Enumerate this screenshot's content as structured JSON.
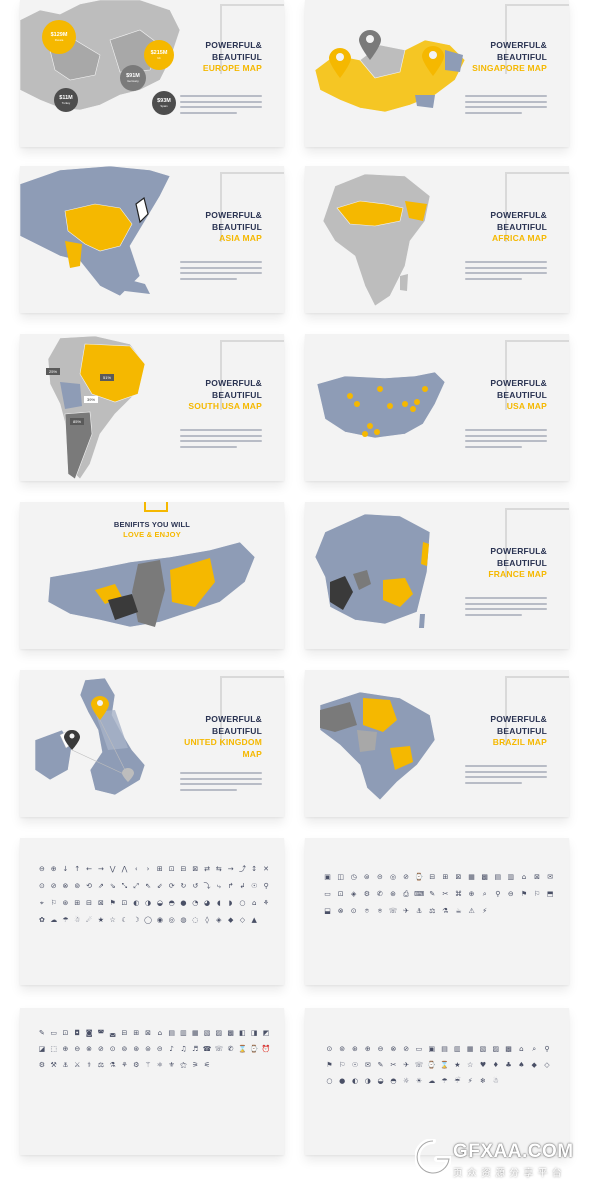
{
  "colors": {
    "accent": "#f5b800",
    "navy": "#2a3352",
    "map_blue": "#8e9cb6",
    "map_gray": "#bdbdbd",
    "dark_gray": "#595959"
  },
  "slides": [
    {
      "id": "europe",
      "tag": "",
      "line1": "POWERFUL&",
      "line2": "BEAUTIFUL",
      "accent": "EUROPE MAP",
      "bubbles": [
        {
          "value": "$129M",
          "name": "Russia"
        },
        {
          "value": "$215M",
          "name": "Uk"
        },
        {
          "value": "$91M",
          "name": "Germany"
        },
        {
          "value": "$11M",
          "name": "Turkey"
        },
        {
          "value": "$93M",
          "name": "Spain"
        }
      ]
    },
    {
      "id": "singapore",
      "tag": "",
      "line1": "POWERFUL&",
      "line2": "BEAUTIFUL",
      "accent": "SINGAPORE MAP"
    },
    {
      "id": "asia",
      "tag": "",
      "line1": "POWERFUL&",
      "line2": "BEAUTIFUL",
      "accent": "ASIA MAP"
    },
    {
      "id": "africa",
      "tag": "",
      "line1": "POWERFUL&",
      "line2": "BEAUTIFUL",
      "accent": "AFRICA MAP"
    },
    {
      "id": "south-usa",
      "tag": "",
      "line1": "POWERFUL&",
      "line2": "BEAUTIFUL",
      "accent": "SOUTH USA MAP",
      "tags": [
        "25%",
        "51%",
        "39%",
        "85%"
      ]
    },
    {
      "id": "usa",
      "tag": "",
      "line1": "POWERFUL&",
      "line2": "BEAUTIFUL",
      "accent": "USA MAP"
    },
    {
      "id": "russia",
      "benefit1": "BENIFITS YOU WILL",
      "benefit2": "LOVE & ENJOY"
    },
    {
      "id": "france",
      "tag": "",
      "line1": "POWERFUL&",
      "line2": "BEAUTIFUL",
      "accent": "FRANCE MAP"
    },
    {
      "id": "uk",
      "tag": "",
      "line1": "POWERFUL&",
      "line2": "BEAUTIFUL",
      "accent": "UNITED KINGDOM",
      "accent2": "MAP"
    },
    {
      "id": "brazil",
      "tag": "",
      "line1": "POWERFUL&",
      "line2": "BEAUTIFUL",
      "accent": "BRAZIL MAP"
    }
  ],
  "icon_sets": [
    [
      "⊖",
      "⊕",
      "↓",
      "↑",
      "←",
      "→",
      "⋁",
      "⋀",
      "‹",
      "›",
      "⊞",
      "⊡",
      "⊟",
      "⊠",
      "⇄",
      "⇆",
      "→",
      "⤴",
      "↕",
      "✕",
      "⊙",
      "⊘",
      "⊗",
      "⊚",
      "⟲",
      "⇗",
      "⇘",
      "⤡",
      "⤢",
      "⇖",
      "⇙",
      "⟳",
      "↻",
      "↺",
      "⤵",
      "⤷",
      "↱",
      "↲",
      "☉",
      "⚲",
      "⌖",
      "⚐",
      "⊛",
      "⊞",
      "⊟",
      "⊠",
      "⚑",
      "⊡",
      "◐",
      "◑",
      "◒",
      "◓",
      "●",
      "◔",
      "◕",
      "◖",
      "◗",
      "○",
      "⌂",
      "⚘",
      "✿",
      "☁",
      "☂",
      "☃",
      "☄",
      "★",
      "☆",
      "☾",
      "☽",
      "◯",
      "◉",
      "◎",
      "◍",
      "◌",
      "◊",
      "◈",
      "◆",
      "◇",
      "▲"
    ],
    [
      "▣",
      "◫",
      "◷",
      "⊜",
      "⊝",
      "◎",
      "⊘",
      "⌚",
      "⊟",
      "⊞",
      "⊠",
      "▦",
      "▩",
      "▤",
      "▥",
      "⌂",
      "⊠",
      "✉",
      "▭",
      "⊡",
      "◈",
      "⚙",
      "✆",
      "⊛",
      "⎙",
      "⌨",
      "✎",
      "✂",
      "⌘",
      "⊕",
      "⌕",
      "⚲",
      "⊖",
      "⚑",
      "⚐",
      "⬒",
      "⬓",
      "⊗",
      "⊙",
      "⌾",
      "⍟",
      "☏",
      "✈",
      "⚓",
      "⚖",
      "⚗",
      "☕",
      "⚠",
      "⚡"
    ],
    [
      "✎",
      "▭",
      "⊡",
      "◘",
      "◙",
      "◚",
      "◛",
      "⊟",
      "⊞",
      "⊠",
      "⌂",
      "▤",
      "▥",
      "▦",
      "▧",
      "▨",
      "▩",
      "◧",
      "◨",
      "◩",
      "◪",
      "⬚",
      "⊕",
      "⊖",
      "⊗",
      "⊘",
      "⊙",
      "⊚",
      "⊛",
      "⊜",
      "⊝",
      "♪",
      "♫",
      "♬",
      "☎",
      "☏",
      "✆",
      "⌛",
      "⌚",
      "⏰",
      "⚙",
      "⚒",
      "⚓",
      "⚔",
      "⚕",
      "⚖",
      "⚗",
      "⚘",
      "⚙",
      "⚚",
      "⚛",
      "⚜",
      "⚝",
      "⚞",
      "⚟"
    ],
    [
      "⊙",
      "⊚",
      "⊛",
      "⊕",
      "⊖",
      "⊗",
      "⊘",
      "▭",
      "▣",
      "▤",
      "▥",
      "▦",
      "▧",
      "▨",
      "▩",
      "⌂",
      "⌕",
      "⚲",
      "⚑",
      "⚐",
      "☉",
      "✉",
      "✎",
      "✂",
      "✈",
      "☏",
      "⌚",
      "⌛",
      "★",
      "☆",
      "♥",
      "♦",
      "♣",
      "♠",
      "◆",
      "◇",
      "○",
      "●",
      "◐",
      "◑",
      "◒",
      "◓",
      "☼",
      "☀",
      "☁",
      "☂",
      "☔",
      "⚡",
      "❄",
      "☃"
    ]
  ],
  "watermark": {
    "text": "GFXAA.COM",
    "sub": "页 众 资 源 分 享 平 台"
  }
}
